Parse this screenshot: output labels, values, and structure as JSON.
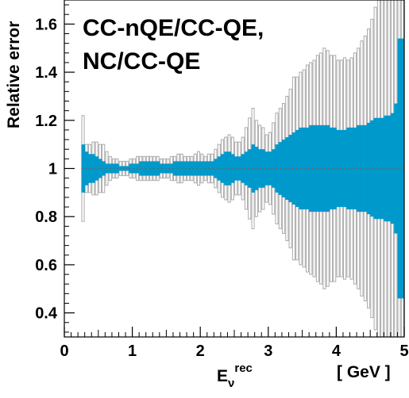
{
  "chart_data": {
    "type": "bar",
    "title_lines": [
      "CC-nQE/CC-QE,",
      "NC/CC-QE"
    ],
    "ylabel": "Relative error",
    "xlabel_main": "E",
    "xlabel_sub": "ν",
    "xlabel_sup": "rec",
    "xunit": "[ GeV ]",
    "xlim": [
      0,
      5
    ],
    "ylim": [
      0.3,
      1.7
    ],
    "x_ticks": [
      "0",
      "1",
      "2",
      "3",
      "4",
      "5"
    ],
    "y_ticks": [
      "0.4",
      "0.6",
      "0.8",
      "1",
      "1.2",
      "1.4",
      "1.6"
    ],
    "bin_width": 0.05,
    "bin_start": 0.25,
    "series": [
      {
        "role": "outer-open-boxes",
        "color": "#aaaaaa",
        "half_widths": [
          0.22,
          0.1,
          0.1,
          0.11,
          0.11,
          0.1,
          0.1,
          0.07,
          0.05,
          0.04,
          0.04,
          0.03,
          0.03,
          0.03,
          0.04,
          0.04,
          0.05,
          0.05,
          0.05,
          0.05,
          0.05,
          0.05,
          0.05,
          0.04,
          0.04,
          0.04,
          0.05,
          0.05,
          0.06,
          0.06,
          0.05,
          0.05,
          0.05,
          0.06,
          0.07,
          0.06,
          0.05,
          0.06,
          0.06,
          0.08,
          0.1,
          0.12,
          0.13,
          0.14,
          0.13,
          0.11,
          0.11,
          0.13,
          0.17,
          0.21,
          0.25,
          0.2,
          0.18,
          0.17,
          0.14,
          0.15,
          0.19,
          0.23,
          0.25,
          0.27,
          0.3,
          0.33,
          0.38,
          0.38,
          0.4,
          0.41,
          0.43,
          0.44,
          0.45,
          0.47,
          0.48,
          0.5,
          0.49,
          0.47,
          0.47,
          0.45,
          0.45,
          0.46,
          0.45,
          0.46,
          0.48,
          0.5,
          0.53,
          0.55,
          0.58,
          0.62,
          0.67,
          0.7,
          0.7,
          0.7,
          0.74,
          0.75,
          0.75,
          0.75,
          0.75
        ]
      },
      {
        "role": "inner-filled-boxes",
        "color": "#0099cc",
        "half_widths": [
          0.1,
          0.07,
          0.06,
          0.06,
          0.05,
          0.04,
          0.03,
          0.02,
          0.02,
          0.02,
          0.02,
          0.01,
          0.01,
          0.01,
          0.02,
          0.02,
          0.02,
          0.03,
          0.03,
          0.03,
          0.03,
          0.03,
          0.03,
          0.02,
          0.02,
          0.02,
          0.02,
          0.03,
          0.03,
          0.03,
          0.03,
          0.03,
          0.03,
          0.03,
          0.03,
          0.03,
          0.03,
          0.03,
          0.03,
          0.04,
          0.05,
          0.06,
          0.07,
          0.07,
          0.06,
          0.05,
          0.05,
          0.06,
          0.07,
          0.08,
          0.1,
          0.09,
          0.08,
          0.08,
          0.07,
          0.07,
          0.08,
          0.1,
          0.11,
          0.12,
          0.13,
          0.14,
          0.15,
          0.16,
          0.17,
          0.17,
          0.17,
          0.18,
          0.18,
          0.18,
          0.18,
          0.18,
          0.18,
          0.17,
          0.17,
          0.16,
          0.16,
          0.16,
          0.17,
          0.17,
          0.17,
          0.18,
          0.18,
          0.18,
          0.19,
          0.2,
          0.21,
          0.21,
          0.21,
          0.22,
          0.22,
          0.23,
          0.27,
          0.54,
          0.54
        ]
      }
    ],
    "grid": false
  }
}
